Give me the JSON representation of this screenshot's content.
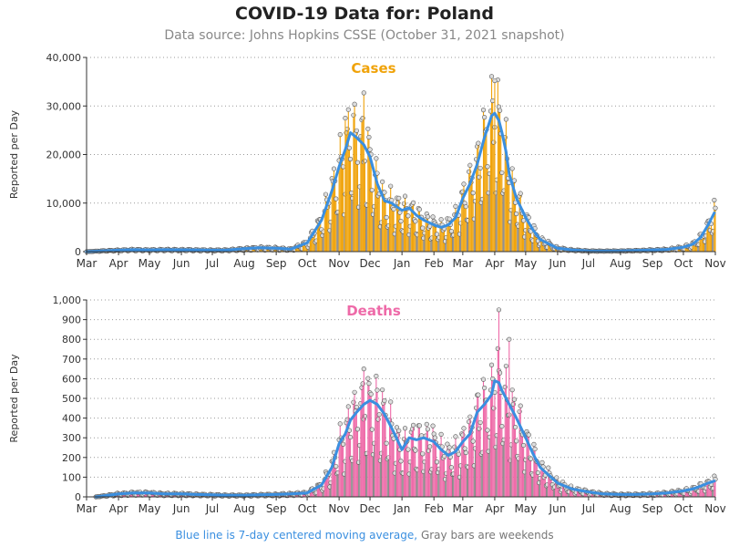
{
  "title": "COVID-19 Data for: Poland",
  "subtitle": "Data source: Johns Hopkins CSSE (October 31, 2021 snapshot)",
  "footnote": {
    "blue": "Blue line is 7-day centered moving average,",
    "gray": "Gray bars are weekends"
  },
  "colors": {
    "cases": "#f0a30a",
    "deaths": "#ee6aa8",
    "average": "#3a8fe0",
    "axis": "#333333",
    "grid": "#999999"
  },
  "chart_data": [
    {
      "type": "bar",
      "title": "Cases",
      "ylabel": "Reported per Day",
      "ylim": [
        0,
        40000
      ],
      "yticks": [
        0,
        10000,
        20000,
        30000,
        40000
      ],
      "ytick_labels": [
        "0",
        "10,000",
        "20,000",
        "30,000",
        "40,000"
      ],
      "xticks": [
        "Mar",
        "Apr",
        "May",
        "Jun",
        "Jul",
        "Aug",
        "Sep",
        "Oct",
        "Nov",
        "Dec",
        "Jan",
        "Feb",
        "Mar",
        "Apr",
        "May",
        "Jun",
        "Jul",
        "Aug",
        "Sep",
        "Oct",
        "Nov"
      ],
      "x_start": "2020-03-01",
      "grid": true,
      "daily_weekly_series": {
        "name": "Reported per Day",
        "x": [
          "2020-03-01",
          "2020-03-15",
          "2020-04-01",
          "2020-04-15",
          "2020-05-01",
          "2020-05-15",
          "2020-06-01",
          "2020-06-15",
          "2020-07-01",
          "2020-07-15",
          "2020-08-01",
          "2020-08-15",
          "2020-09-01",
          "2020-09-15",
          "2020-10-01",
          "2020-10-15",
          "2020-10-25",
          "2020-11-01",
          "2020-11-07",
          "2020-11-12",
          "2020-11-18",
          "2020-11-25",
          "2020-12-01",
          "2020-12-08",
          "2020-12-15",
          "2020-12-22",
          "2021-01-01",
          "2021-01-08",
          "2021-01-15",
          "2021-01-22",
          "2021-02-01",
          "2021-02-08",
          "2021-02-15",
          "2021-02-22",
          "2021-03-01",
          "2021-03-08",
          "2021-03-15",
          "2021-03-22",
          "2021-03-29",
          "2021-04-01",
          "2021-04-05",
          "2021-04-08",
          "2021-04-12",
          "2021-04-15",
          "2021-04-22",
          "2021-05-01",
          "2021-05-08",
          "2021-05-15",
          "2021-06-01",
          "2021-06-15",
          "2021-07-01",
          "2021-07-15",
          "2021-08-01",
          "2021-08-15",
          "2021-09-01",
          "2021-09-15",
          "2021-10-01",
          "2021-10-10",
          "2021-10-18",
          "2021-10-25",
          "2021-10-31"
        ],
        "y": [
          0,
          150,
          300,
          400,
          350,
          400,
          380,
          350,
          300,
          320,
          600,
          800,
          700,
          500,
          1800,
          6500,
          12500,
          17500,
          21000,
          24500,
          23500,
          22000,
          19500,
          14000,
          10500,
          10000,
          8500,
          9000,
          7500,
          6500,
          5500,
          5000,
          5500,
          7000,
          11000,
          14000,
          18000,
          23500,
          28000,
          28500,
          27000,
          24500,
          20500,
          16000,
          11000,
          7000,
          4500,
          2500,
          700,
          350,
          150,
          120,
          150,
          220,
          350,
          450,
          900,
          1500,
          3000,
          5500,
          8000
        ]
      },
      "moving_average": {
        "name": "7-day centered moving average",
        "x": [
          "2020-03-01",
          "2020-03-15",
          "2020-04-01",
          "2020-04-15",
          "2020-05-01",
          "2020-05-15",
          "2020-06-01",
          "2020-06-15",
          "2020-07-01",
          "2020-07-15",
          "2020-08-01",
          "2020-08-15",
          "2020-09-01",
          "2020-09-15",
          "2020-10-01",
          "2020-10-15",
          "2020-10-25",
          "2020-11-01",
          "2020-11-07",
          "2020-11-12",
          "2020-11-18",
          "2020-11-25",
          "2020-12-01",
          "2020-12-08",
          "2020-12-15",
          "2020-12-22",
          "2021-01-01",
          "2021-01-08",
          "2021-01-15",
          "2021-01-22",
          "2021-02-01",
          "2021-02-08",
          "2021-02-15",
          "2021-02-22",
          "2021-03-01",
          "2021-03-08",
          "2021-03-15",
          "2021-03-22",
          "2021-03-29",
          "2021-04-01",
          "2021-04-05",
          "2021-04-08",
          "2021-04-12",
          "2021-04-15",
          "2021-04-22",
          "2021-05-01",
          "2021-05-08",
          "2021-05-15",
          "2021-06-01",
          "2021-06-15",
          "2021-07-01",
          "2021-07-15",
          "2021-08-01",
          "2021-08-15",
          "2021-09-01",
          "2021-09-15",
          "2021-10-01",
          "2021-10-10",
          "2021-10-18",
          "2021-10-25",
          "2021-10-31"
        ],
        "y": [
          0,
          150,
          300,
          400,
          350,
          400,
          380,
          350,
          300,
          320,
          600,
          800,
          700,
          500,
          1800,
          6500,
          12500,
          17500,
          21000,
          24500,
          23500,
          22000,
          19500,
          14000,
          10500,
          10000,
          8500,
          9000,
          7500,
          6500,
          5500,
          5000,
          5500,
          7000,
          11000,
          14000,
          18000,
          23500,
          28000,
          28500,
          27000,
          24500,
          20500,
          16000,
          11000,
          7000,
          4500,
          2500,
          700,
          350,
          150,
          120,
          150,
          220,
          350,
          450,
          900,
          1500,
          3000,
          5500,
          8000
        ]
      },
      "peak_marks": [
        {
          "x": "2020-11-07",
          "y": 27500
        },
        {
          "x": "2020-11-25",
          "y": 32700
        },
        {
          "x": "2021-04-01",
          "y": 35200
        }
      ]
    },
    {
      "type": "bar",
      "title": "Deaths",
      "ylabel": "Reported per Day",
      "ylim": [
        0,
        1000
      ],
      "yticks": [
        0,
        100,
        200,
        300,
        400,
        500,
        600,
        700,
        800,
        900,
        1000
      ],
      "ytick_labels": [
        "0",
        "100",
        "200",
        "300",
        "400",
        "500",
        "600",
        "700",
        "800",
        "900",
        "1,000"
      ],
      "xticks": [
        "Mar",
        "Apr",
        "May",
        "Jun",
        "Jul",
        "Aug",
        "Sep",
        "Oct",
        "Nov",
        "Dec",
        "Jan",
        "Feb",
        "Mar",
        "Apr",
        "May",
        "Jun",
        "Jul",
        "Aug",
        "Sep",
        "Oct",
        "Nov"
      ],
      "x_start": "2020-03-01",
      "grid": true,
      "daily_weekly_series": {
        "name": "Reported per Day",
        "x": [
          "2020-03-10",
          "2020-04-01",
          "2020-04-15",
          "2020-05-01",
          "2020-05-15",
          "2020-06-01",
          "2020-06-15",
          "2020-07-01",
          "2020-07-15",
          "2020-08-01",
          "2020-08-15",
          "2020-09-01",
          "2020-09-15",
          "2020-10-01",
          "2020-10-15",
          "2020-10-25",
          "2020-11-01",
          "2020-11-07",
          "2020-11-12",
          "2020-11-18",
          "2020-11-25",
          "2020-12-01",
          "2020-12-08",
          "2020-12-15",
          "2020-12-22",
          "2021-01-01",
          "2021-01-08",
          "2021-01-15",
          "2021-01-22",
          "2021-02-01",
          "2021-02-08",
          "2021-02-15",
          "2021-02-22",
          "2021-03-01",
          "2021-03-08",
          "2021-03-15",
          "2021-03-22",
          "2021-03-29",
          "2021-04-01",
          "2021-04-05",
          "2021-04-08",
          "2021-04-12",
          "2021-04-15",
          "2021-04-22",
          "2021-05-01",
          "2021-05-08",
          "2021-05-15",
          "2021-06-01",
          "2021-06-15",
          "2021-07-01",
          "2021-07-15",
          "2021-08-01",
          "2021-08-15",
          "2021-09-01",
          "2021-09-15",
          "2021-10-01",
          "2021-10-10",
          "2021-10-18",
          "2021-10-25",
          "2021-10-31"
        ],
        "y": [
          0,
          15,
          20,
          20,
          15,
          15,
          12,
          10,
          8,
          8,
          10,
          12,
          15,
          20,
          60,
          150,
          270,
          320,
          390,
          430,
          470,
          490,
          470,
          420,
          350,
          240,
          300,
          290,
          300,
          280,
          240,
          210,
          230,
          280,
          320,
          430,
          470,
          520,
          590,
          580,
          540,
          500,
          470,
          400,
          300,
          220,
          150,
          70,
          40,
          25,
          15,
          12,
          12,
          15,
          20,
          30,
          40,
          55,
          70,
          80
        ]
      },
      "moving_average": {
        "name": "7-day centered moving average",
        "x": [
          "2020-03-10",
          "2020-04-01",
          "2020-04-15",
          "2020-05-01",
          "2020-05-15",
          "2020-06-01",
          "2020-06-15",
          "2020-07-01",
          "2020-07-15",
          "2020-08-01",
          "2020-08-15",
          "2020-09-01",
          "2020-09-15",
          "2020-10-01",
          "2020-10-15",
          "2020-10-25",
          "2020-11-01",
          "2020-11-07",
          "2020-11-12",
          "2020-11-18",
          "2020-11-25",
          "2020-12-01",
          "2020-12-08",
          "2020-12-15",
          "2020-12-22",
          "2021-01-01",
          "2021-01-08",
          "2021-01-15",
          "2021-01-22",
          "2021-02-01",
          "2021-02-08",
          "2021-02-15",
          "2021-02-22",
          "2021-03-01",
          "2021-03-08",
          "2021-03-15",
          "2021-03-22",
          "2021-03-29",
          "2021-04-01",
          "2021-04-05",
          "2021-04-08",
          "2021-04-12",
          "2021-04-15",
          "2021-04-22",
          "2021-05-01",
          "2021-05-08",
          "2021-05-15",
          "2021-06-01",
          "2021-06-15",
          "2021-07-01",
          "2021-07-15",
          "2021-08-01",
          "2021-08-15",
          "2021-09-01",
          "2021-09-15",
          "2021-10-01",
          "2021-10-10",
          "2021-10-18",
          "2021-10-25",
          "2021-10-31"
        ],
        "y": [
          0,
          15,
          20,
          20,
          15,
          15,
          12,
          10,
          8,
          8,
          10,
          12,
          15,
          20,
          60,
          150,
          270,
          320,
          390,
          430,
          470,
          490,
          470,
          420,
          350,
          240,
          300,
          290,
          300,
          280,
          240,
          210,
          230,
          280,
          320,
          430,
          470,
          520,
          590,
          580,
          540,
          500,
          470,
          400,
          300,
          220,
          150,
          70,
          40,
          25,
          15,
          12,
          12,
          15,
          20,
          30,
          40,
          55,
          70,
          80
        ]
      },
      "peak_marks": [
        {
          "x": "2020-11-25",
          "y": 650
        },
        {
          "x": "2021-04-05",
          "y": 950
        },
        {
          "x": "2021-04-15",
          "y": 800
        }
      ]
    }
  ]
}
